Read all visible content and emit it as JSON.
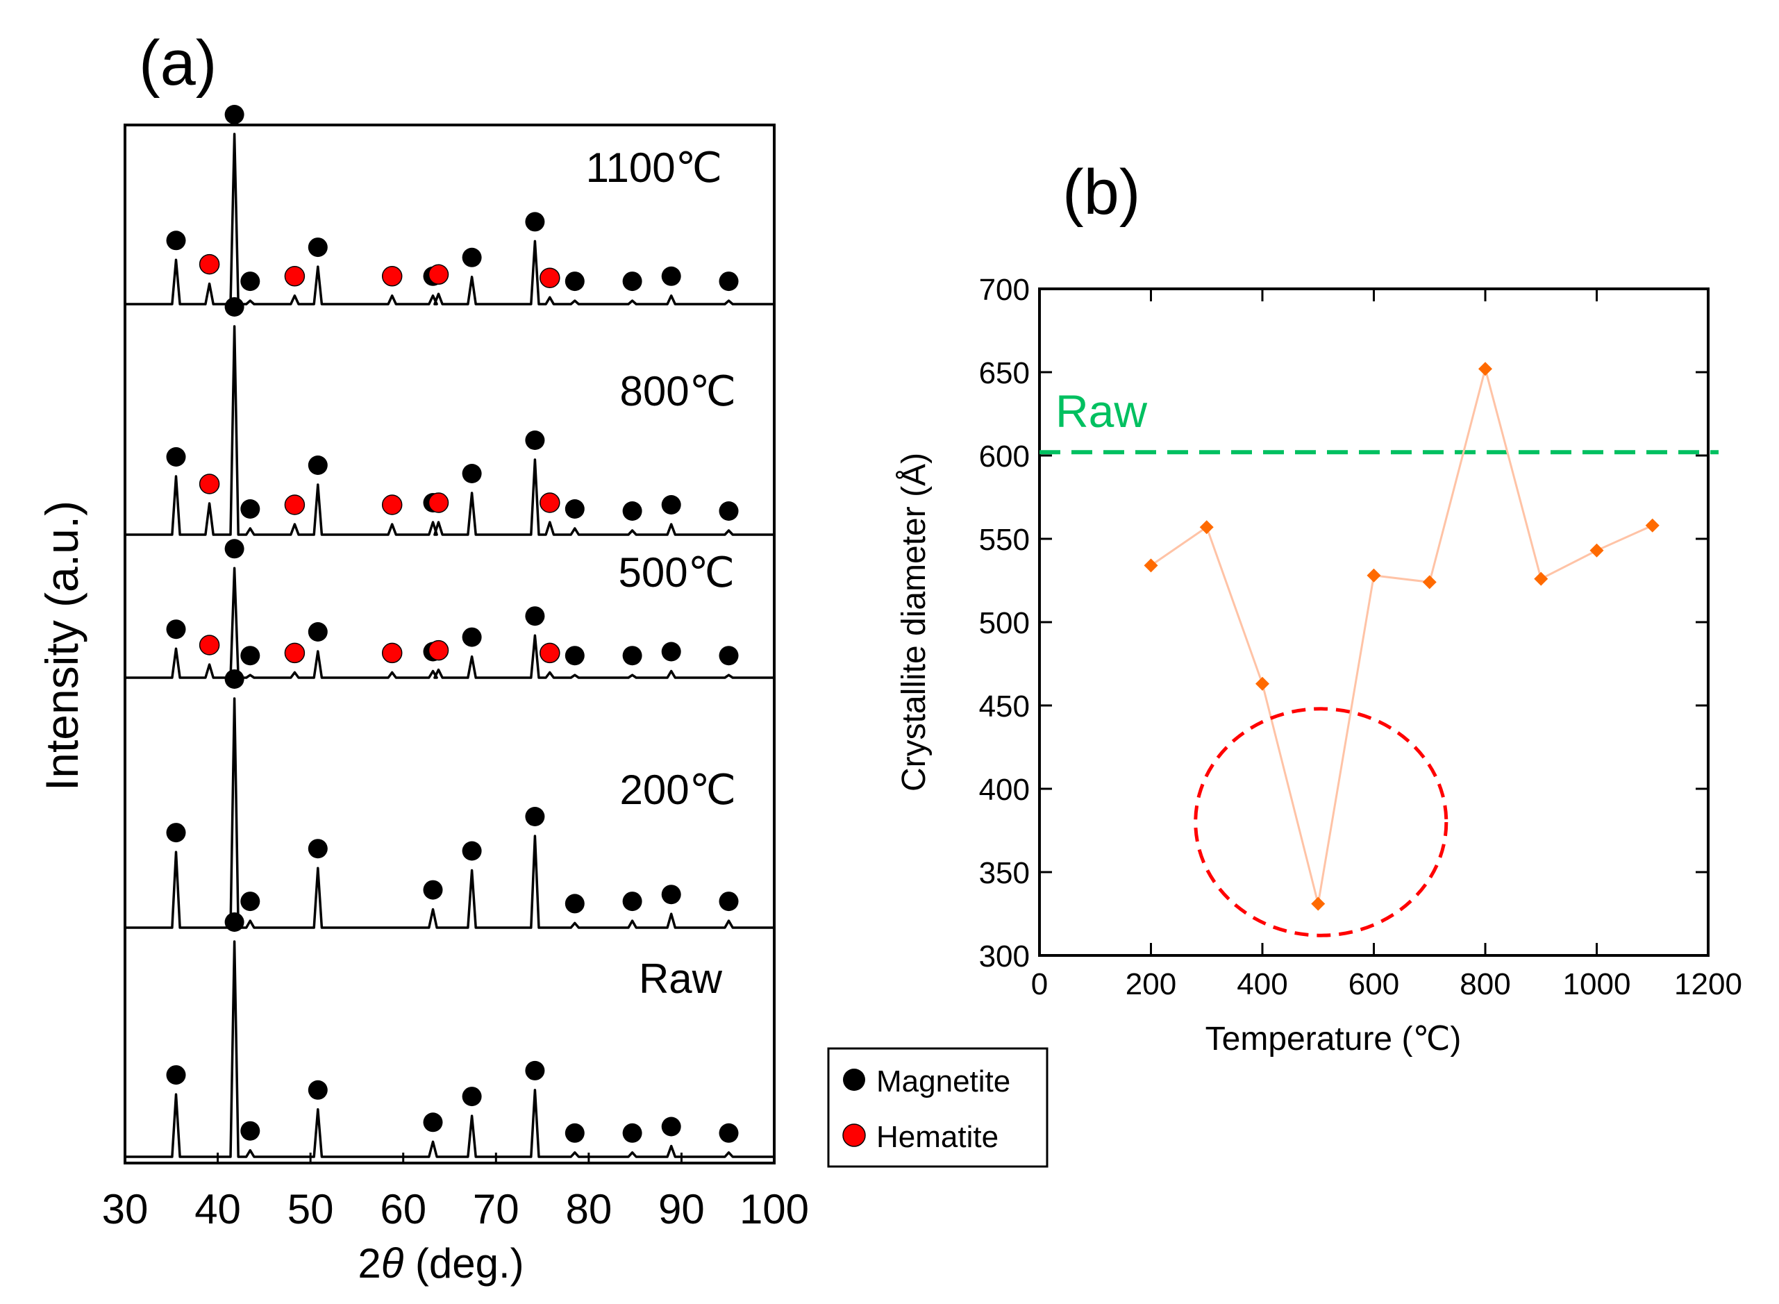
{
  "chart_data": [
    {
      "type": "line",
      "panel_label": "(a)",
      "title": "",
      "xlabel_prefix": "2",
      "xlabel_symbol": "θ",
      "xlabel_suffix": " (deg.)",
      "ylabel": "Intensity (a.u.)",
      "xlim": [
        30,
        100
      ],
      "xticks": [
        30,
        40,
        50,
        60,
        70,
        80,
        90,
        100
      ],
      "legend": {
        "placement": "bottom-right, outside plot",
        "entries": [
          {
            "label": "Magnetite",
            "color": "#000000"
          },
          {
            "label": "Hematite",
            "color": "#ff0000"
          }
        ]
      },
      "magnetite_peaks": [
        35.5,
        41.8,
        43.5,
        50.8,
        63.2,
        67.4,
        74.2,
        78.5,
        84.7,
        88.9,
        95.1
      ],
      "hematite_peaks": [
        39.1,
        48.3,
        58.8,
        63.8,
        75.8
      ],
      "series": [
        {
          "name": "1100℃",
          "label": "1100℃",
          "magnetite_heights": [
            0.26,
            1.0,
            0.02,
            0.22,
            0.05,
            0.16,
            0.37,
            0.02,
            0.02,
            0.05,
            0.02
          ],
          "hematite_heights": [
            0.12,
            0.05,
            0.05,
            0.06,
            0.04
          ]
        },
        {
          "name": "800℃",
          "label": "800℃",
          "magnetite_heights": [
            0.28,
            1.0,
            0.03,
            0.24,
            0.06,
            0.2,
            0.36,
            0.03,
            0.02,
            0.05,
            0.02
          ],
          "hematite_heights": [
            0.15,
            0.05,
            0.05,
            0.06,
            0.06
          ]
        },
        {
          "name": "500℃",
          "label": "500℃",
          "magnetite_heights": [
            0.22,
            0.83,
            0.02,
            0.2,
            0.05,
            0.16,
            0.32,
            0.02,
            0.02,
            0.05,
            0.02
          ],
          "hematite_heights": [
            0.1,
            0.04,
            0.04,
            0.06,
            0.04
          ]
        },
        {
          "name": "200℃",
          "label": "200℃",
          "magnetite_heights": [
            0.33,
            1.0,
            0.03,
            0.26,
            0.08,
            0.25,
            0.4,
            0.02,
            0.03,
            0.06,
            0.03
          ],
          "hematite_heights": []
        },
        {
          "name": "Raw",
          "label": "Raw",
          "magnetite_heights": [
            0.29,
            1.0,
            0.03,
            0.22,
            0.07,
            0.19,
            0.31,
            0.02,
            0.02,
            0.05,
            0.02
          ],
          "hematite_heights": []
        }
      ]
    },
    {
      "type": "line",
      "panel_label": "(b)",
      "title": "",
      "xlabel": "Temperature (℃)",
      "ylabel": "Crystallite diameter (Å)",
      "xlim": [
        0,
        1200
      ],
      "ylim": [
        300,
        700
      ],
      "xticks": [
        0,
        200,
        400,
        600,
        800,
        1000,
        1200
      ],
      "yticks": [
        300,
        350,
        400,
        450,
        500,
        550,
        600,
        650,
        700
      ],
      "series": [
        {
          "name": "Crystallite diameter",
          "color": "#ff6a00",
          "line_color": "#ffc3a6",
          "x": [
            200,
            300,
            400,
            500,
            600,
            700,
            800,
            900,
            1000,
            1100
          ],
          "y": [
            534,
            557,
            463,
            331,
            528,
            524,
            652,
            526,
            543,
            558
          ]
        }
      ],
      "reference_line": {
        "label": "Raw",
        "y": 602,
        "color": "#00c060",
        "style": "dashed"
      },
      "annotation": {
        "type": "dashed-ellipse",
        "color": "#ff0000",
        "center_x": 505,
        "center_y": 380,
        "radius_x": 225,
        "radius_y": 68
      }
    }
  ]
}
